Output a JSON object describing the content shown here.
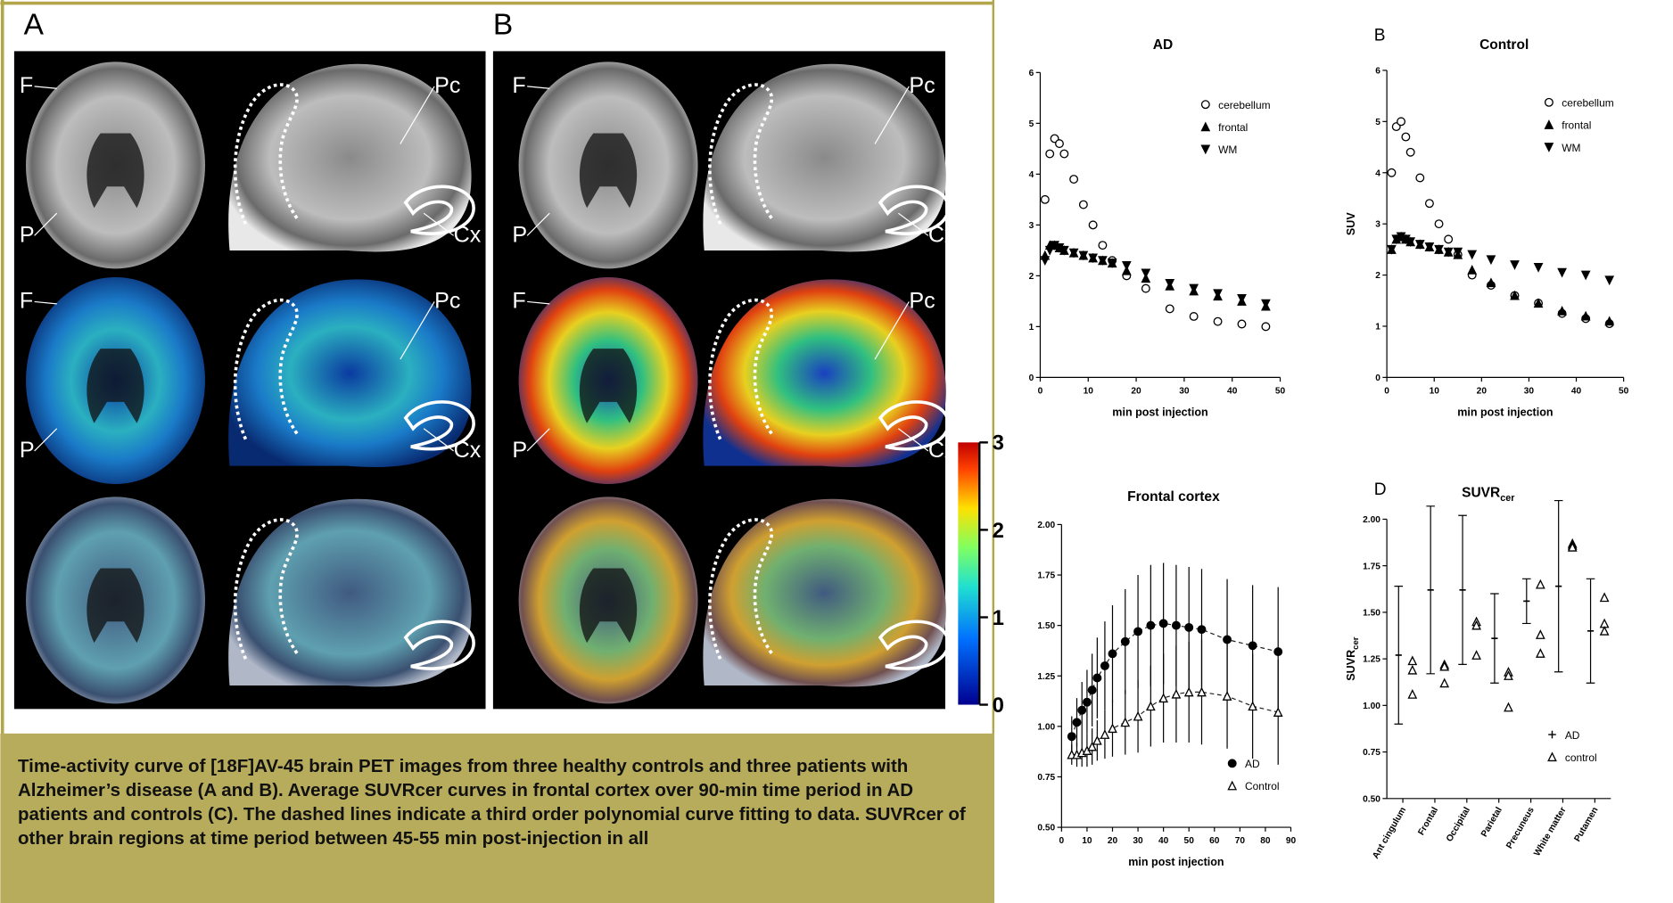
{
  "figure_left": {
    "panels": [
      {
        "letter": "A",
        "rows": [
          [
            "F",
            "P",
            "Pc",
            "Cx"
          ],
          [
            "F",
            "P",
            "Pc",
            "Cx"
          ]
        ]
      },
      {
        "letter": "B",
        "rows": [
          [
            "F",
            "P",
            "Pc",
            "Cx"
          ],
          [
            "F",
            "P",
            "Pc",
            "Cx"
          ]
        ]
      }
    ],
    "colorbar": {
      "lim": [
        0,
        3
      ],
      "ticks": [
        0,
        1,
        2,
        3
      ]
    }
  },
  "caption": "Time-activity curve of [18F]AV-45 brain PET images from three healthy controls and three patients with Alzheimer’s disease (A and B). Average SUVRcer curves in frontal cortex over 90-min time period in AD patients and controls (C). The dashed lines indicate a third order polynomial curve fitting to data. SUVRcer of other brain regions at time period between 45-55 min post-injection in all",
  "chart_data": [
    {
      "type": "scatter",
      "title": "AD",
      "xlabel": "min post injection",
      "xlim": [
        0,
        50
      ],
      "xticks": [
        0,
        10,
        20,
        30,
        40,
        50
      ],
      "ylim": [
        0,
        6
      ],
      "yticks": [
        0,
        1,
        2,
        3,
        4,
        5,
        6
      ],
      "legend": "upper right",
      "x": [
        1,
        2,
        3,
        4,
        5,
        7,
        9,
        11,
        13,
        15,
        18,
        22,
        27,
        32,
        37,
        42,
        47
      ],
      "series": [
        {
          "name": "cerebellum",
          "marker": "circle-open",
          "color": "#000000",
          "values": [
            3.5,
            4.4,
            4.7,
            4.6,
            4.4,
            3.9,
            3.4,
            3.0,
            2.6,
            2.3,
            2.0,
            1.75,
            1.35,
            1.2,
            1.1,
            1.05,
            1.0
          ]
        },
        {
          "name": "frontal",
          "marker": "triangle-up",
          "color": "#000000",
          "values": [
            2.4,
            2.6,
            2.6,
            2.55,
            2.5,
            2.45,
            2.4,
            2.35,
            2.3,
            2.25,
            2.1,
            1.95,
            1.8,
            1.7,
            1.6,
            1.5,
            1.4
          ]
        },
        {
          "name": "WM",
          "marker": "triangle-down",
          "color": "#000000",
          "values": [
            2.3,
            2.5,
            2.6,
            2.55,
            2.5,
            2.45,
            2.4,
            2.35,
            2.3,
            2.25,
            2.2,
            2.05,
            1.85,
            1.75,
            1.65,
            1.55,
            1.45
          ]
        }
      ]
    },
    {
      "type": "scatter",
      "letter": "B",
      "title": "Control",
      "xlabel": "min post injection",
      "ylabel": "SUV",
      "xlim": [
        0,
        50
      ],
      "xticks": [
        0,
        10,
        20,
        30,
        40,
        50
      ],
      "ylim": [
        0,
        6
      ],
      "yticks": [
        0,
        1,
        2,
        3,
        4,
        5,
        6
      ],
      "legend": "upper right",
      "x": [
        1,
        2,
        3,
        4,
        5,
        7,
        9,
        11,
        13,
        15,
        18,
        22,
        27,
        32,
        37,
        42,
        47
      ],
      "series": [
        {
          "name": "cerebellum",
          "marker": "circle-open",
          "color": "#000000",
          "values": [
            4.0,
            4.9,
            5.0,
            4.7,
            4.4,
            3.9,
            3.4,
            3.0,
            2.7,
            2.4,
            2.0,
            1.8,
            1.6,
            1.45,
            1.25,
            1.15,
            1.05
          ]
        },
        {
          "name": "frontal",
          "marker": "triangle-up",
          "color": "#000000",
          "values": [
            2.5,
            2.7,
            2.75,
            2.7,
            2.65,
            2.6,
            2.55,
            2.5,
            2.45,
            2.4,
            2.1,
            1.85,
            1.6,
            1.45,
            1.3,
            1.2,
            1.1
          ]
        },
        {
          "name": "WM",
          "marker": "triangle-down",
          "color": "#000000",
          "values": [
            2.5,
            2.7,
            2.75,
            2.7,
            2.65,
            2.6,
            2.55,
            2.5,
            2.45,
            2.45,
            2.4,
            2.3,
            2.2,
            2.15,
            2.05,
            2.0,
            1.9
          ]
        }
      ]
    },
    {
      "type": "scatter",
      "title": "Frontal cortex",
      "xlabel": "min post injection",
      "xlim": [
        0,
        90
      ],
      "xticks": [
        0,
        10,
        20,
        30,
        40,
        50,
        60,
        70,
        80,
        90
      ],
      "ylim": [
        0.5,
        2.0
      ],
      "yticks": [
        {
          "value": 0.5,
          "label": "0.50"
        },
        {
          "value": 0.75,
          "label": "0.75"
        },
        {
          "value": 1.0,
          "label": "1.00"
        },
        {
          "value": 1.25,
          "label": "1.25"
        },
        {
          "value": 1.5,
          "label": "1.50"
        },
        {
          "value": 1.75,
          "label": "1.75"
        },
        {
          "value": 2.0,
          "label": "2.00"
        }
      ],
      "legend": "lower right",
      "fit_line": "dashed",
      "x": [
        4,
        6,
        8,
        10,
        12,
        14,
        17,
        20,
        25,
        30,
        35,
        40,
        45,
        50,
        55,
        65,
        75,
        85
      ],
      "series": [
        {
          "name": "AD",
          "marker": "circle",
          "color": "#000000",
          "values": [
            0.95,
            1.02,
            1.08,
            1.12,
            1.18,
            1.24,
            1.3,
            1.36,
            1.42,
            1.47,
            1.5,
            1.51,
            1.5,
            1.49,
            1.48,
            1.43,
            1.4,
            1.37
          ],
          "errors": [
            0.1,
            0.12,
            0.14,
            0.16,
            0.18,
            0.2,
            0.22,
            0.24,
            0.26,
            0.28,
            0.3,
            0.3,
            0.3,
            0.3,
            0.3,
            0.3,
            0.3,
            0.32
          ]
        },
        {
          "name": "Control",
          "marker": "triangle-open",
          "color": "#000000",
          "values": [
            0.86,
            0.86,
            0.87,
            0.88,
            0.9,
            0.93,
            0.96,
            0.99,
            1.02,
            1.05,
            1.1,
            1.14,
            1.16,
            1.17,
            1.17,
            1.15,
            1.1,
            1.07
          ],
          "errors": [
            0.05,
            0.06,
            0.07,
            0.08,
            0.09,
            0.1,
            0.12,
            0.14,
            0.16,
            0.18,
            0.2,
            0.22,
            0.24,
            0.25,
            0.26,
            0.26,
            0.26,
            0.26
          ]
        }
      ]
    },
    {
      "type": "dot",
      "letter": "D",
      "title": "SUVR",
      "title_subscript": "cer",
      "ylabel": "SUVR",
      "ylabel_subscript": "cer",
      "ylim": [
        0.5,
        2.0
      ],
      "yticks": [
        {
          "value": 0.5,
          "label": "0.50"
        },
        {
          "value": 0.75,
          "label": "0.75"
        },
        {
          "value": 1.0,
          "label": "1.00"
        },
        {
          "value": 1.25,
          "label": "1.25"
        },
        {
          "value": 1.5,
          "label": "1.50"
        },
        {
          "value": 1.75,
          "label": "1.75"
        },
        {
          "value": 2.0,
          "label": "2.00"
        }
      ],
      "legend": "lower right",
      "categories": [
        "Ant cingulum",
        "Frontal",
        "Occipital",
        "Parietal",
        "Precuneus",
        "White matter",
        "Putamen"
      ],
      "series": [
        {
          "name": "AD",
          "marker": "plus",
          "color": "#000000",
          "values": [
            1.27,
            1.62,
            1.62,
            1.36,
            1.56,
            1.64,
            1.4
          ],
          "errors": [
            0.37,
            0.45,
            0.4,
            0.24,
            0.12,
            0.46,
            0.28
          ]
        },
        {
          "name": "control",
          "marker": "triangle-open",
          "color": "#000000",
          "values": [
            [
              1.24,
              1.19,
              1.06
            ],
            [
              1.22,
              1.21,
              1.12
            ],
            [
              1.45,
              1.43,
              1.27
            ],
            [
              1.18,
              1.16,
              0.99
            ],
            [
              1.65,
              1.38,
              1.28
            ],
            [
              1.87,
              1.86,
              1.85
            ],
            [
              1.58,
              1.44,
              1.4
            ]
          ]
        }
      ]
    }
  ]
}
